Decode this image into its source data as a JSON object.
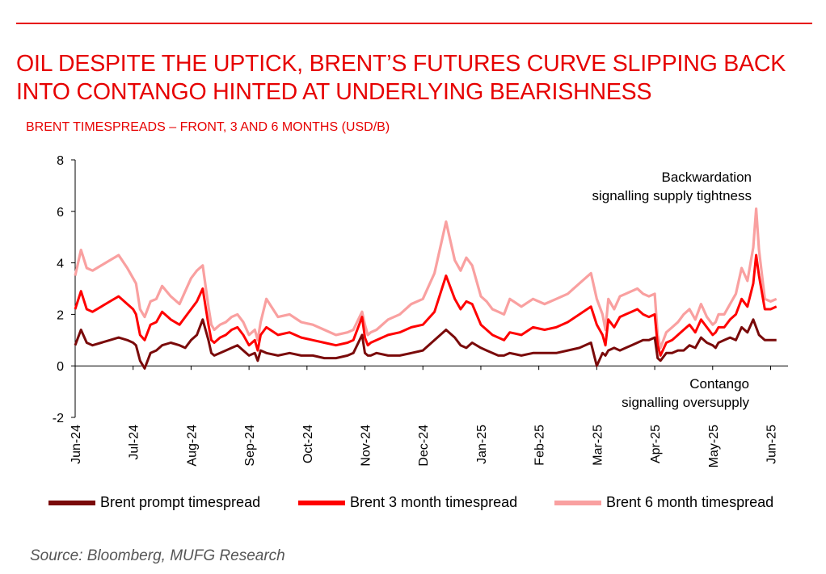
{
  "title": "OIL DESPITE THE UPTICK, BRENT’S FUTURES CURVE SLIPPING BACK INTO CONTANGO HINTED AT UNDERLYING BEARISHNESS",
  "source": "Source: Bloomberg, MUFG Research",
  "colors": {
    "accent": "#e60000",
    "prompt": "#7a0a0a",
    "three": "#ff0000",
    "six": "#f9a0a0"
  },
  "chart_data": {
    "type": "line",
    "title": "BRENT TIMESPREADS – FRONT, 3 AND 6 MONTHS (USD/B)",
    "xlabel": "",
    "ylabel": "",
    "ylim": [
      -2,
      8
    ],
    "yticks": [
      -2,
      0,
      2,
      4,
      6,
      8
    ],
    "xticks": [
      "Jun-24",
      "Jul-24",
      "Aug-24",
      "Sep-24",
      "Oct-24",
      "Nov-24",
      "Dec-24",
      "Jan-25",
      "Feb-25",
      "Mar-25",
      "Apr-25",
      "May-25",
      "Jun-25"
    ],
    "xlim": [
      0,
      12.3
    ],
    "grid": false,
    "legend_position": "bottom",
    "annotations": [
      {
        "lines": [
          "Backwardation",
          "signalling supply tightness"
        ]
      },
      {
        "lines": [
          "Contango",
          "signalling oversupply"
        ]
      }
    ],
    "series": [
      {
        "name": "Brent prompt timespread",
        "x": [
          0,
          0.1,
          0.2,
          0.3,
          0.45,
          0.6,
          0.75,
          0.9,
          1.0,
          1.05,
          1.12,
          1.2,
          1.3,
          1.4,
          1.5,
          1.65,
          1.8,
          1.9,
          2.0,
          2.1,
          2.2,
          2.3,
          2.35,
          2.4,
          2.5,
          2.6,
          2.7,
          2.8,
          2.9,
          3.0,
          3.1,
          3.15,
          3.2,
          3.3,
          3.5,
          3.7,
          3.9,
          4.1,
          4.3,
          4.5,
          4.7,
          4.8,
          4.95,
          5.0,
          5.05,
          5.1,
          5.2,
          5.4,
          5.6,
          5.8,
          6.0,
          6.2,
          6.4,
          6.55,
          6.65,
          6.75,
          6.85,
          7.0,
          7.1,
          7.2,
          7.3,
          7.4,
          7.5,
          7.7,
          7.9,
          8.1,
          8.3,
          8.5,
          8.7,
          8.9,
          9.0,
          9.1,
          9.15,
          9.2,
          9.3,
          9.4,
          9.5,
          9.6,
          9.7,
          9.8,
          9.9,
          10.0,
          10.05,
          10.1,
          10.2,
          10.3,
          10.4,
          10.5,
          10.6,
          10.7,
          10.8,
          10.9,
          11.0,
          11.05,
          11.1,
          11.2,
          11.3,
          11.4,
          11.5,
          11.6,
          11.7,
          11.75,
          11.8,
          11.9,
          12.0,
          12.1
        ],
        "values": [
          0.8,
          1.4,
          0.9,
          0.8,
          0.9,
          1.0,
          1.1,
          1.0,
          0.9,
          0.8,
          0.2,
          -0.1,
          0.5,
          0.6,
          0.8,
          0.9,
          0.8,
          0.7,
          1.0,
          1.2,
          1.8,
          1.0,
          0.5,
          0.4,
          0.5,
          0.6,
          0.7,
          0.8,
          0.6,
          0.4,
          0.5,
          0.2,
          0.6,
          0.5,
          0.4,
          0.5,
          0.4,
          0.4,
          0.3,
          0.3,
          0.4,
          0.5,
          1.2,
          0.5,
          0.4,
          0.4,
          0.5,
          0.4,
          0.4,
          0.5,
          0.6,
          1.0,
          1.4,
          1.1,
          0.8,
          0.7,
          0.9,
          0.7,
          0.6,
          0.5,
          0.4,
          0.4,
          0.5,
          0.4,
          0.5,
          0.5,
          0.5,
          0.6,
          0.7,
          0.9,
          0.0,
          0.5,
          0.4,
          0.6,
          0.7,
          0.6,
          0.7,
          0.8,
          0.9,
          1.0,
          1.0,
          1.1,
          0.3,
          0.2,
          0.5,
          0.5,
          0.6,
          0.6,
          0.8,
          0.7,
          1.1,
          0.9,
          0.8,
          0.7,
          0.9,
          1.0,
          1.1,
          1.0,
          1.5,
          1.3,
          1.8,
          1.5,
          1.2,
          1.0,
          1.0,
          1.0
        ]
      },
      {
        "name": "Brent 3 month timespread",
        "x": [
          0,
          0.1,
          0.2,
          0.3,
          0.45,
          0.6,
          0.75,
          0.9,
          1.0,
          1.05,
          1.12,
          1.2,
          1.3,
          1.4,
          1.5,
          1.65,
          1.8,
          1.9,
          2.0,
          2.1,
          2.2,
          2.3,
          2.35,
          2.4,
          2.5,
          2.6,
          2.7,
          2.8,
          2.9,
          3.0,
          3.1,
          3.15,
          3.2,
          3.3,
          3.5,
          3.7,
          3.9,
          4.1,
          4.3,
          4.5,
          4.7,
          4.8,
          4.95,
          5.0,
          5.05,
          5.1,
          5.2,
          5.4,
          5.6,
          5.8,
          6.0,
          6.2,
          6.4,
          6.55,
          6.65,
          6.75,
          6.85,
          7.0,
          7.1,
          7.2,
          7.3,
          7.4,
          7.5,
          7.7,
          7.9,
          8.1,
          8.3,
          8.5,
          8.7,
          8.9,
          9.0,
          9.1,
          9.15,
          9.2,
          9.3,
          9.4,
          9.5,
          9.6,
          9.7,
          9.8,
          9.9,
          10.0,
          10.05,
          10.1,
          10.2,
          10.3,
          10.4,
          10.5,
          10.6,
          10.7,
          10.8,
          10.9,
          11.0,
          11.05,
          11.1,
          11.2,
          11.3,
          11.4,
          11.5,
          11.6,
          11.7,
          11.75,
          11.8,
          11.9,
          12.0,
          12.1
        ],
        "values": [
          2.2,
          2.9,
          2.2,
          2.1,
          2.3,
          2.5,
          2.7,
          2.4,
          2.2,
          2.0,
          1.2,
          1.0,
          1.6,
          1.7,
          2.1,
          1.8,
          1.6,
          1.9,
          2.2,
          2.5,
          3.0,
          1.6,
          1.0,
          0.9,
          1.1,
          1.2,
          1.4,
          1.5,
          1.2,
          0.8,
          1.0,
          0.6,
          1.2,
          1.5,
          1.2,
          1.3,
          1.1,
          1.0,
          0.9,
          0.8,
          0.9,
          1.0,
          1.9,
          1.1,
          0.8,
          0.9,
          1.0,
          1.2,
          1.3,
          1.5,
          1.6,
          2.1,
          3.5,
          2.6,
          2.2,
          2.5,
          2.4,
          1.6,
          1.4,
          1.2,
          1.1,
          1.0,
          1.3,
          1.2,
          1.5,
          1.4,
          1.5,
          1.7,
          2.0,
          2.3,
          1.6,
          1.2,
          0.8,
          1.8,
          1.5,
          1.9,
          2.0,
          2.1,
          2.2,
          2.0,
          1.9,
          2.0,
          0.8,
          0.4,
          0.9,
          1.0,
          1.2,
          1.4,
          1.6,
          1.3,
          1.8,
          1.5,
          1.2,
          1.3,
          1.5,
          1.5,
          1.8,
          2.0,
          2.6,
          2.3,
          3.2,
          4.3,
          3.5,
          2.2,
          2.2,
          2.3
        ]
      },
      {
        "name": "Brent 6 month timespread",
        "x": [
          0,
          0.1,
          0.2,
          0.3,
          0.45,
          0.6,
          0.75,
          0.9,
          1.0,
          1.05,
          1.12,
          1.2,
          1.3,
          1.4,
          1.5,
          1.65,
          1.8,
          1.9,
          2.0,
          2.1,
          2.2,
          2.3,
          2.35,
          2.4,
          2.5,
          2.6,
          2.7,
          2.8,
          2.9,
          3.0,
          3.1,
          3.15,
          3.2,
          3.3,
          3.5,
          3.7,
          3.9,
          4.1,
          4.3,
          4.5,
          4.7,
          4.8,
          4.95,
          5.0,
          5.05,
          5.1,
          5.2,
          5.4,
          5.6,
          5.8,
          6.0,
          6.2,
          6.4,
          6.55,
          6.65,
          6.75,
          6.85,
          7.0,
          7.1,
          7.2,
          7.3,
          7.4,
          7.5,
          7.7,
          7.9,
          8.1,
          8.3,
          8.5,
          8.7,
          8.9,
          9.0,
          9.1,
          9.15,
          9.2,
          9.3,
          9.4,
          9.5,
          9.6,
          9.7,
          9.8,
          9.9,
          10.0,
          10.05,
          10.1,
          10.2,
          10.3,
          10.4,
          10.5,
          10.6,
          10.7,
          10.8,
          10.9,
          11.0,
          11.05,
          11.1,
          11.2,
          11.3,
          11.4,
          11.5,
          11.6,
          11.7,
          11.75,
          11.8,
          11.9,
          12.0,
          12.1
        ],
        "values": [
          3.5,
          4.5,
          3.8,
          3.7,
          3.9,
          4.1,
          4.3,
          3.8,
          3.4,
          3.2,
          2.2,
          1.9,
          2.5,
          2.6,
          3.1,
          2.7,
          2.4,
          2.9,
          3.4,
          3.7,
          3.9,
          2.3,
          1.6,
          1.4,
          1.6,
          1.7,
          1.9,
          2.0,
          1.7,
          1.2,
          1.4,
          1.0,
          1.7,
          2.6,
          1.9,
          2.0,
          1.7,
          1.6,
          1.4,
          1.2,
          1.3,
          1.4,
          2.1,
          1.6,
          1.2,
          1.3,
          1.4,
          1.8,
          2.0,
          2.4,
          2.6,
          3.6,
          5.6,
          4.1,
          3.7,
          4.2,
          3.9,
          2.7,
          2.5,
          2.2,
          2.1,
          2.0,
          2.6,
          2.3,
          2.6,
          2.4,
          2.6,
          2.8,
          3.2,
          3.6,
          2.6,
          2.0,
          1.4,
          2.6,
          2.2,
          2.7,
          2.8,
          2.9,
          3.0,
          2.8,
          2.7,
          2.8,
          1.2,
          0.7,
          1.3,
          1.5,
          1.7,
          2.0,
          2.2,
          1.8,
          2.4,
          1.9,
          1.6,
          1.7,
          2.0,
          2.0,
          2.4,
          2.8,
          3.8,
          3.3,
          4.6,
          6.1,
          4.5,
          2.6,
          2.5,
          2.6
        ]
      }
    ]
  }
}
